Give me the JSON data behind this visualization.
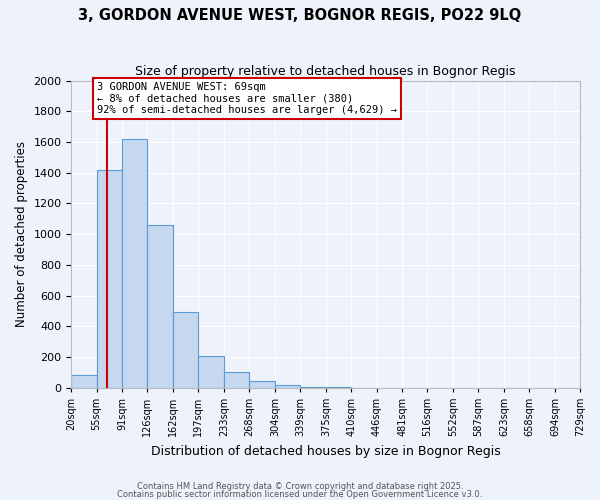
{
  "title": "3, GORDON AVENUE WEST, BOGNOR REGIS, PO22 9LQ",
  "subtitle": "Size of property relative to detached houses in Bognor Regis",
  "xlabel": "Distribution of detached houses by size in Bognor Regis",
  "ylabel": "Number of detached properties",
  "bar_color": "#c5d8f0",
  "bar_edge_color": "#5b9bd5",
  "bg_color": "#eef2fa",
  "grid_color": "#ffffff",
  "bins": [
    20,
    55,
    91,
    126,
    162,
    197,
    233,
    268,
    304,
    339,
    375,
    410,
    446,
    481,
    516,
    552,
    587,
    623,
    658,
    694,
    729
  ],
  "counts": [
    80,
    1420,
    1620,
    1060,
    490,
    205,
    105,
    40,
    20,
    5,
    2,
    0,
    0,
    0,
    0,
    0,
    0,
    0,
    0,
    0
  ],
  "property_size": 69,
  "vline_color": "#cc0000",
  "annotation_line1": "3 GORDON AVENUE WEST: 69sqm",
  "annotation_line2": "← 8% of detached houses are smaller (380)",
  "annotation_line3": "92% of semi-detached houses are larger (4,629) →",
  "annotation_box_color": "#ffffff",
  "annotation_box_edge": "#cc0000",
  "ylim": [
    0,
    2000
  ],
  "yticks": [
    0,
    200,
    400,
    600,
    800,
    1000,
    1200,
    1400,
    1600,
    1800,
    2000
  ],
  "footer1": "Contains HM Land Registry data © Crown copyright and database right 2025.",
  "footer2": "Contains public sector information licensed under the Open Government Licence v3.0."
}
